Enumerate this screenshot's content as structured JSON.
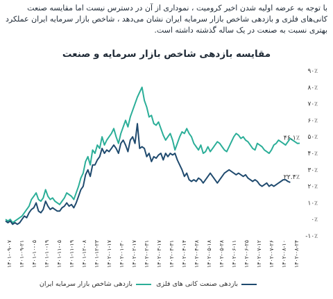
{
  "intro_text": "با توجه به عرضه اولیه شدن اخیر کرومیت ، نموداری از آن در دسترس نیست اما مقایسه صنعت کانی‌های فلزی و بازدهی شاخص بازار سرمایه ایران نشان می‌دهد ، شاخص بازار سرمایه ایران عملکرد بهتری نسبت به صنعت در یک ساله گذشته داشته است.",
  "chart_data": {
    "type": "line",
    "title": "مقایسه بازدهی شاخص بازار سرمایه و صنعت",
    "ylim": [
      -10,
      90
    ],
    "y_ticks": [
      -10,
      0,
      10,
      20,
      30,
      40,
      50,
      60,
      70,
      80,
      90
    ],
    "y_tick_labels": [
      "-۱۰٪",
      "۰٪",
      "۱۰٪",
      "۲۰٪",
      "۳۰٪",
      "۴۰٪",
      "۵۰٪",
      "۶۰٪",
      "۷۰٪",
      "۸۰٪",
      "۹۰٪"
    ],
    "x_tick_labels": [
      "۱۴۰۱-۰۹-۰۷",
      "۱۴۰۱-۰۹-۲۱",
      "۱۴۰۱-۱۰-۰۵",
      "۱۴۰۱-۱۰-۱۹",
      "۱۴۰۱-۱۱-۰۵",
      "۱۴۰۱-۱۱-۱۹",
      "۱۴۰۱-۱۲-۰۸",
      "۱۴۰۱-۱۲-۲۳",
      "۱۴۰۲-۰۱-۱۷",
      "۱۴۰۲-۰۱-۳۰",
      "۱۴۰۲-۰۲-۱۷",
      "۱۴۰۲-۰۲-۳۱",
      "۱۴۰۲-۰۳-۱۷",
      "۱۴۰۲-۰۳-۳۱",
      "۱۴۰۲-۰۴-۱۴",
      "۱۴۰۲-۰۴-۲۸",
      "۱۴۰۲-۰۵-۱۸",
      "۱۴۰۲-۰۵-۲۸",
      "۱۴۰۲-۰۶-۱۱",
      "۱۴۰۲-۰۶-۲۵",
      "۱۴۰۲-۰۷-۱۲",
      "۱۴۰۲-۰۷-۲۶",
      "۱۴۰۲-۰۸-۱۰",
      "۱۴۰۲-۰۸-۲۴"
    ],
    "series": [
      {
        "name": "بازدهی شاخص بازار سرمایه ایران",
        "color": "#2bae98",
        "end_label": "۴۶.۱٪",
        "values": [
          0,
          -1,
          0,
          -2,
          -1,
          0,
          1,
          2,
          4,
          6,
          8,
          12,
          14,
          16,
          12,
          11,
          13,
          18,
          14,
          12,
          13,
          11,
          10,
          9,
          11,
          13,
          16,
          15,
          14,
          12,
          16,
          20,
          25,
          28,
          35,
          38,
          33,
          42,
          40,
          45,
          43,
          50,
          45,
          48,
          50,
          52,
          55,
          50,
          46,
          52,
          56,
          60,
          56,
          62,
          66,
          70,
          74,
          77,
          80,
          72,
          68,
          62,
          63,
          58,
          57,
          59,
          55,
          51,
          48,
          50,
          52,
          48,
          42,
          46,
          50,
          53,
          52,
          55,
          52,
          50,
          46,
          44,
          42,
          45,
          40,
          41,
          44,
          41,
          43,
          45,
          47,
          46,
          44,
          42,
          41,
          44,
          47,
          50,
          52,
          51,
          49,
          50,
          48,
          47,
          45,
          43,
          42,
          46,
          45,
          44,
          42,
          41,
          40,
          42,
          45,
          46,
          48,
          47,
          46,
          45,
          47,
          49,
          48,
          47,
          46,
          46.1
        ]
      },
      {
        "name": "بازدهی صنعت کانی های فلزی",
        "color": "#1f4a6e",
        "end_label": "۲۲.۴٪",
        "values": [
          -1,
          -2,
          -1,
          -3,
          -2,
          -3,
          -2,
          0,
          2,
          1,
          4,
          6,
          7,
          10,
          5,
          4,
          6,
          11,
          8,
          6,
          7,
          6,
          5,
          5,
          7,
          8,
          10,
          8,
          9,
          7,
          10,
          14,
          18,
          20,
          27,
          30,
          26,
          33,
          33,
          36,
          38,
          43,
          40,
          42,
          41,
          43,
          45,
          43,
          40,
          46,
          48,
          45,
          41,
          48,
          50,
          46,
          58,
          43,
          44,
          43,
          38,
          40,
          35,
          38,
          37,
          39,
          40,
          36,
          40,
          38,
          40,
          39,
          40,
          36,
          33,
          30,
          26,
          28,
          24,
          23,
          24,
          23,
          25,
          24,
          22,
          24,
          26,
          28,
          26,
          24,
          22,
          24,
          26,
          28,
          29,
          30,
          29,
          28,
          27,
          28,
          27,
          26,
          27,
          25,
          24,
          23,
          24,
          23,
          21,
          20,
          21,
          22,
          20,
          21,
          20,
          21,
          22,
          23,
          24,
          24,
          23,
          22.4
        ]
      }
    ]
  }
}
